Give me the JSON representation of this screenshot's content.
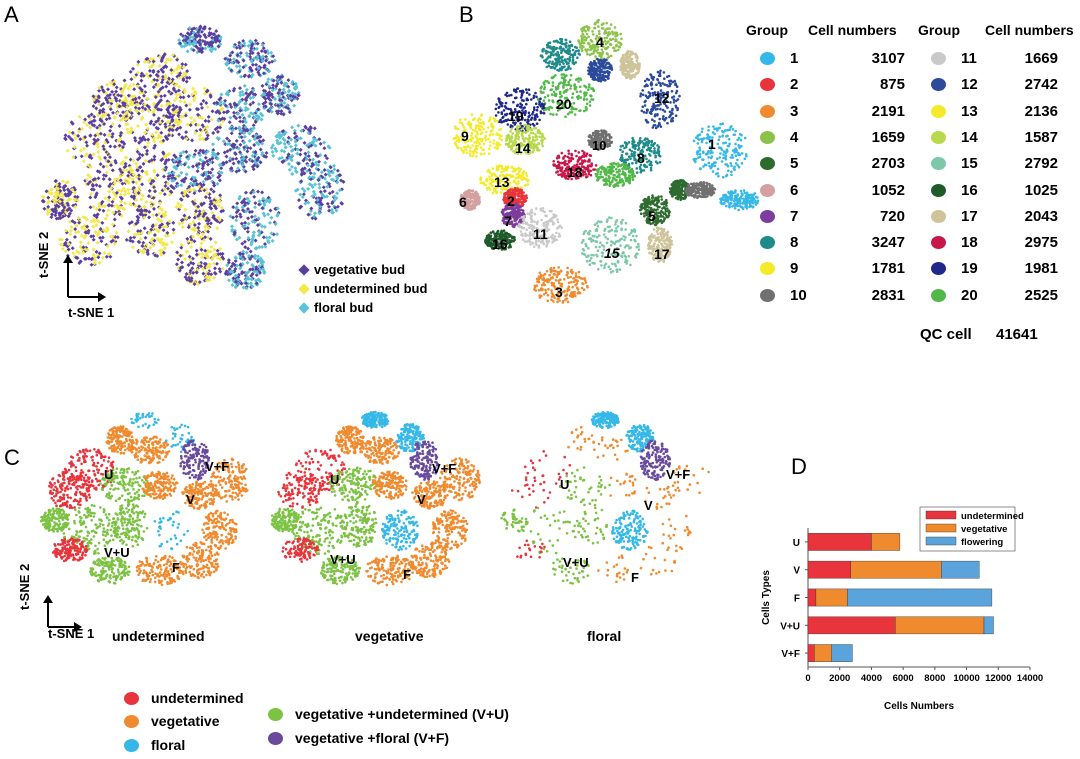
{
  "panels": {
    "a": "A",
    "b": "B",
    "c": "C",
    "d": "D"
  },
  "axes": {
    "tsne1": "t-SNE 1",
    "tsne2": "t-SNE 2"
  },
  "panel_a": {
    "legend": [
      {
        "label": "vegetative bud",
        "color": "#5b3fa0",
        "icon": "diamond-icon"
      },
      {
        "label": "undetermined bud",
        "color": "#f4e84a",
        "icon": "diamond-icon"
      },
      {
        "label": "floral bud",
        "color": "#58c3d6",
        "icon": "diamond-icon"
      }
    ]
  },
  "panel_b": {
    "headers": {
      "group": "Group",
      "cells": "Cell numbers"
    },
    "groups": [
      {
        "id": "1",
        "cells": "3107",
        "color": "#35b8e8"
      },
      {
        "id": "2",
        "cells": "875",
        "color": "#e8343c"
      },
      {
        "id": "3",
        "cells": "2191",
        "color": "#f08a2e"
      },
      {
        "id": "4",
        "cells": "1659",
        "color": "#8cc24a"
      },
      {
        "id": "5",
        "cells": "2703",
        "color": "#2e6b2f"
      },
      {
        "id": "6",
        "cells": "1052",
        "color": "#d4a0a0"
      },
      {
        "id": "7",
        "cells": "720",
        "color": "#7d3d9c"
      },
      {
        "id": "8",
        "cells": "3247",
        "color": "#1f8a8a"
      },
      {
        "id": "9",
        "cells": "1781",
        "color": "#f4ea2a"
      },
      {
        "id": "10",
        "cells": "2831",
        "color": "#707070"
      },
      {
        "id": "11",
        "cells": "1669",
        "color": "#c9c9c9"
      },
      {
        "id": "12",
        "cells": "2742",
        "color": "#2b4a9c"
      },
      {
        "id": "13",
        "cells": "2136",
        "color": "#f4ea2a"
      },
      {
        "id": "14",
        "cells": "1587",
        "color": "#b7d94a"
      },
      {
        "id": "15",
        "cells": "2792",
        "color": "#7cc8a8"
      },
      {
        "id": "16",
        "cells": "1025",
        "color": "#1e5a2a"
      },
      {
        "id": "17",
        "cells": "2043",
        "color": "#cfc39a"
      },
      {
        "id": "18",
        "cells": "2975",
        "color": "#c8184a"
      },
      {
        "id": "19",
        "cells": "1981",
        "color": "#20288a"
      },
      {
        "id": "20",
        "cells": "2525",
        "color": "#52b848"
      }
    ],
    "qc_label": "QC cell",
    "qc_value": "41641",
    "cluster_labels": [
      "4",
      "20",
      "12",
      "19",
      "9",
      "14",
      "10",
      "8",
      "1",
      "18",
      "13",
      "2",
      "6",
      "7",
      "11",
      "16",
      "5",
      "15",
      "17",
      "3"
    ]
  },
  "panel_c": {
    "maps": [
      {
        "title": "undetermined",
        "labels": {
          "u": "U",
          "vf": "V+F",
          "v": "V",
          "vu": "V+U",
          "f": "F"
        }
      },
      {
        "title": "vegetative",
        "labels": {
          "u": "U",
          "vf": "V+F",
          "v": "V",
          "vu": "V+U",
          "f": "F"
        }
      },
      {
        "title": "floral",
        "labels": {
          "u": "U",
          "vf": "V+F",
          "v": "V",
          "vu": "V+U",
          "f": "F"
        }
      }
    ],
    "legend": [
      {
        "label": "undetermined",
        "color": "#e8343c"
      },
      {
        "label": "vegetative",
        "color": "#f08a2e"
      },
      {
        "label": "floral",
        "color": "#35b8e8"
      },
      {
        "label": "vegetative +undetermined (V+U)",
        "color": "#7cc243"
      },
      {
        "label": "vegetative +floral (V+F)",
        "color": "#6a4a9c"
      }
    ]
  },
  "chart_data": {
    "type": "bar",
    "orientation": "horizontal",
    "stacked": true,
    "categories": [
      "U",
      "V",
      "F",
      "V+U",
      "V+F"
    ],
    "series": [
      {
        "name": "undetermined",
        "color": "#e8343c",
        "values": [
          4000,
          2700,
          500,
          5500,
          400
        ]
      },
      {
        "name": "vegetative",
        "color": "#f08a2e",
        "values": [
          1800,
          5700,
          2000,
          5600,
          1100
        ]
      },
      {
        "name": "flowering",
        "color": "#5aa3db",
        "values": [
          0,
          2400,
          9100,
          600,
          1300
        ]
      }
    ],
    "xlabel": "Cells Numbers",
    "ylabel": "Cells Types",
    "xlim": [
      0,
      14000
    ],
    "xticks": [
      "0",
      "2000",
      "4000",
      "6000",
      "8000",
      "10000",
      "12000",
      "14000"
    ],
    "legend_position": "top-right",
    "grid": false
  }
}
